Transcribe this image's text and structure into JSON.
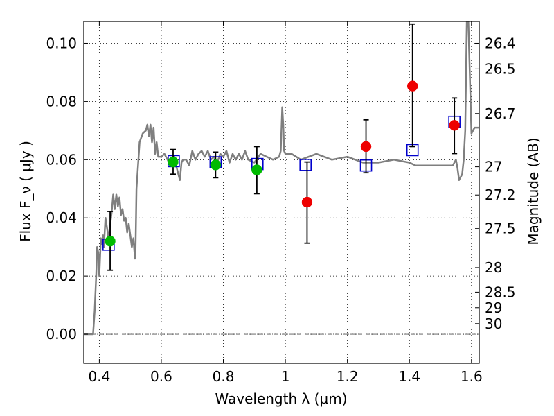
{
  "chart_data": {
    "type": "scatter",
    "xlabel": "Wavelength  λ (μm)",
    "ylabel": "Flux  F_ν  ( μJy )",
    "ylabel_right": "Magnitude (AB)",
    "xlim": [
      0.35,
      1.625
    ],
    "ylim": [
      -0.01,
      0.1075
    ],
    "x_ticks": [
      0.4,
      0.6,
      0.8,
      1.0,
      1.2,
      1.4,
      1.6
    ],
    "x_tick_labels": [
      "0.4",
      "0.6",
      "0.8",
      "1",
      "1.2",
      "1.4",
      "1.6"
    ],
    "y_ticks": [
      0.0,
      0.02,
      0.04,
      0.06,
      0.08,
      0.1
    ],
    "y_tick_labels": [
      "0.00",
      "0.02",
      "0.04",
      "0.06",
      "0.08",
      "0.10"
    ],
    "mag_ticks": [
      26.4,
      26.5,
      26.7,
      27,
      27.2,
      27.5,
      28,
      28.5,
      29,
      30
    ],
    "mag_tick_labels": [
      "26.4",
      "26.5",
      "26.7",
      "27",
      "27.2",
      "27.5",
      "28",
      "28.5",
      "29",
      "30"
    ],
    "grid": true,
    "colors": {
      "template": "#7f7f7f",
      "green_points": "#00bb00",
      "red_points": "#ee0000",
      "model_boxes": "#0000cc",
      "errorbars": "#000000"
    },
    "template_spectrum": {
      "x": [
        0.35,
        0.38,
        0.385,
        0.39,
        0.393,
        0.397,
        0.4,
        0.405,
        0.408,
        0.412,
        0.415,
        0.42,
        0.43,
        0.44,
        0.445,
        0.45,
        0.455,
        0.46,
        0.465,
        0.47,
        0.475,
        0.48,
        0.485,
        0.49,
        0.495,
        0.5,
        0.505,
        0.51,
        0.515,
        0.517,
        0.52,
        0.53,
        0.54,
        0.55,
        0.555,
        0.56,
        0.565,
        0.57,
        0.575,
        0.58,
        0.585,
        0.59,
        0.6,
        0.61,
        0.62,
        0.63,
        0.64,
        0.65,
        0.66,
        0.665,
        0.67,
        0.68,
        0.69,
        0.7,
        0.71,
        0.72,
        0.73,
        0.74,
        0.75,
        0.76,
        0.77,
        0.78,
        0.79,
        0.8,
        0.81,
        0.82,
        0.83,
        0.84,
        0.85,
        0.86,
        0.87,
        0.88,
        0.9,
        0.92,
        0.94,
        0.96,
        0.98,
        0.985,
        0.99,
        0.993,
        0.996,
        1.0,
        1.02,
        1.05,
        1.1,
        1.15,
        1.2,
        1.25,
        1.3,
        1.35,
        1.4,
        1.42,
        1.45,
        1.5,
        1.54,
        1.55,
        1.555,
        1.56,
        1.57,
        1.575,
        1.58,
        1.585,
        1.59,
        1.6,
        1.61,
        1.625
      ],
      "y": [
        0.0,
        0.0,
        0.008,
        0.02,
        0.03,
        0.028,
        0.02,
        0.033,
        0.031,
        0.034,
        0.03,
        0.04,
        0.033,
        0.042,
        0.048,
        0.043,
        0.048,
        0.044,
        0.047,
        0.041,
        0.043,
        0.039,
        0.04,
        0.035,
        0.038,
        0.034,
        0.03,
        0.033,
        0.026,
        0.03,
        0.05,
        0.066,
        0.069,
        0.07,
        0.072,
        0.068,
        0.072,
        0.066,
        0.071,
        0.062,
        0.066,
        0.061,
        0.061,
        0.062,
        0.06,
        0.058,
        0.061,
        0.057,
        0.053,
        0.059,
        0.06,
        0.06,
        0.058,
        0.063,
        0.06,
        0.062,
        0.063,
        0.061,
        0.063,
        0.06,
        0.061,
        0.059,
        0.062,
        0.061,
        0.063,
        0.059,
        0.062,
        0.06,
        0.062,
        0.06,
        0.063,
        0.06,
        0.059,
        0.062,
        0.061,
        0.06,
        0.061,
        0.063,
        0.078,
        0.072,
        0.063,
        0.062,
        0.062,
        0.06,
        0.062,
        0.06,
        0.061,
        0.059,
        0.059,
        0.06,
        0.059,
        0.058,
        0.058,
        0.058,
        0.058,
        0.06,
        0.057,
        0.053,
        0.055,
        0.06,
        0.07,
        0.1075,
        0.1075,
        0.069,
        0.071,
        0.071
      ]
    },
    "series": [
      {
        "marker": "circle",
        "color": "green",
        "x": [
          0.435,
          0.638,
          0.775,
          0.908
        ],
        "y": [
          0.032,
          0.0592,
          0.0582,
          0.0565
        ],
        "yerr_low": [
          0.022,
          0.055,
          0.0538,
          0.0483
        ],
        "yerr_high": [
          0.0422,
          0.0635,
          0.0626,
          0.0645
        ]
      },
      {
        "marker": "circle",
        "color": "red",
        "x": [
          1.07,
          1.26,
          1.41,
          1.545
        ],
        "y": [
          0.0454,
          0.0645,
          0.0853,
          0.0718
        ],
        "yerr_low": [
          0.0313,
          0.0555,
          0.0645,
          0.0621
        ],
        "yerr_high": [
          0.0592,
          0.0737,
          0.1066,
          0.0812
        ]
      },
      {
        "marker": "open-square",
        "color": "blue",
        "x": [
          0.43,
          0.64,
          0.775,
          0.91,
          1.065,
          1.26,
          1.41,
          1.545
        ],
        "y": [
          0.0308,
          0.0595,
          0.0591,
          0.0585,
          0.0582,
          0.058,
          0.0633,
          0.073
        ]
      }
    ]
  }
}
